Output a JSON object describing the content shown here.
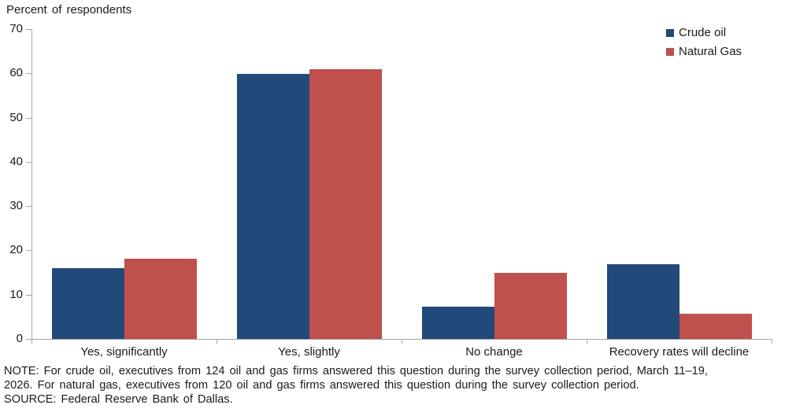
{
  "chart_data": {
    "type": "bar",
    "title": "Percent of respondents",
    "categories": [
      "Yes, significantly",
      "Yes, slightly",
      "No change",
      "Recovery rates will decline"
    ],
    "series": [
      {
        "name": "Crude oil",
        "color": "#21497A",
        "values": [
          16.0,
          59.8,
          7.3,
          16.9
        ]
      },
      {
        "name": "Natural Gas",
        "color": "#C0504D",
        "values": [
          18.2,
          61.0,
          15.0,
          5.7
        ]
      }
    ],
    "xlabel": "",
    "ylabel": "Percent of respondents",
    "ylim": [
      0,
      70
    ],
    "ytick_step": 10,
    "yticks": [
      0,
      10,
      20,
      30,
      40,
      50,
      60,
      70
    ],
    "grid": false,
    "legend_position": "top-right",
    "axis_color": "#a6a6a6"
  },
  "note": {
    "lines": [
      "NOTE: For crude oil, executives from 124 oil and gas firms answered this question during the survey collection period, March 11–19,",
      "2026. For natural gas, executives from 120 oil and gas firms answered this question during the survey collection period.",
      "SOURCE: Federal Reserve Bank of Dallas."
    ]
  }
}
